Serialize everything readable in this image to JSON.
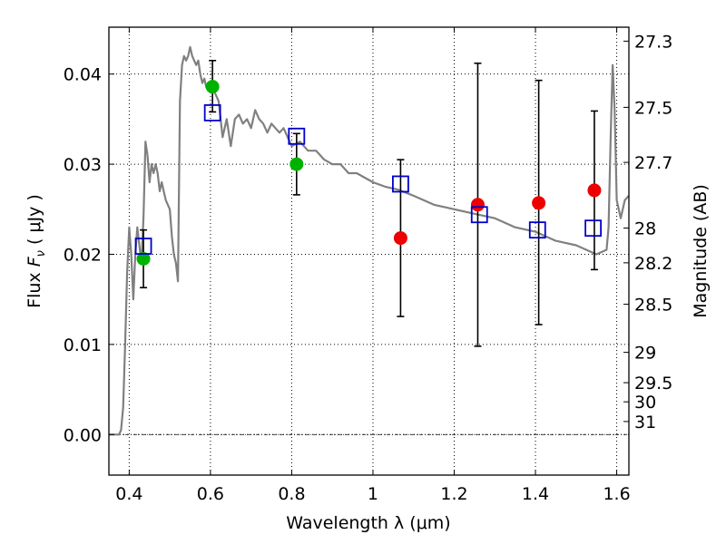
{
  "chart_data": {
    "type": "scatter",
    "xlabel": "Wavelength  λ (μm)",
    "ylabel": "Flux  Fν  ( μJy )",
    "ylabel_parts": {
      "prefix": "Flux  ",
      "symbol": "F",
      "subscript": "ν",
      "suffix": "  ( μJy )"
    },
    "y2label": "Magnitude (AB)",
    "xlim": [
      0.35,
      1.63
    ],
    "ylim": [
      -0.0045,
      0.0452
    ],
    "grid": true,
    "zero_line": true,
    "x_ticks": [
      {
        "value": 0.4,
        "label": "0.4"
      },
      {
        "value": 0.6,
        "label": "0.6"
      },
      {
        "value": 0.8,
        "label": "0.8"
      },
      {
        "value": 1.0,
        "label": "1"
      },
      {
        "value": 1.2,
        "label": "1.2"
      },
      {
        "value": 1.4,
        "label": "1.4"
      },
      {
        "value": 1.6,
        "label": "1.6"
      }
    ],
    "y_ticks": [
      {
        "value": 0.0,
        "label": "0.00"
      },
      {
        "value": 0.01,
        "label": "0.01"
      },
      {
        "value": 0.02,
        "label": "0.02"
      },
      {
        "value": 0.03,
        "label": "0.03"
      },
      {
        "value": 0.04,
        "label": "0.04"
      }
    ],
    "magnitude_ticks": [
      {
        "value": 27.3,
        "label": "27.3"
      },
      {
        "value": 27.5,
        "label": "27.5"
      },
      {
        "value": 27.7,
        "label": "27.7"
      },
      {
        "value": 28.0,
        "label": "28"
      },
      {
        "value": 28.2,
        "label": "28.2"
      },
      {
        "value": 28.5,
        "label": "28.5"
      },
      {
        "value": 29.0,
        "label": "29"
      },
      {
        "value": 29.5,
        "label": "29.5"
      },
      {
        "value": 30.0,
        "label": "30"
      },
      {
        "value": 31.0,
        "label": "31"
      }
    ],
    "series": [
      {
        "name": "model SED",
        "kind": "line",
        "color": "#808080",
        "x": [
          0.35,
          0.375,
          0.38,
          0.385,
          0.39,
          0.395,
          0.4,
          0.405,
          0.41,
          0.415,
          0.42,
          0.425,
          0.43,
          0.435,
          0.44,
          0.445,
          0.45,
          0.455,
          0.46,
          0.465,
          0.47,
          0.475,
          0.48,
          0.485,
          0.49,
          0.495,
          0.5,
          0.505,
          0.51,
          0.515,
          0.52,
          0.525,
          0.53,
          0.535,
          0.54,
          0.545,
          0.55,
          0.555,
          0.56,
          0.565,
          0.57,
          0.575,
          0.58,
          0.585,
          0.59,
          0.595,
          0.6,
          0.61,
          0.62,
          0.63,
          0.64,
          0.65,
          0.66,
          0.67,
          0.68,
          0.69,
          0.7,
          0.71,
          0.72,
          0.73,
          0.74,
          0.75,
          0.76,
          0.77,
          0.78,
          0.79,
          0.8,
          0.82,
          0.84,
          0.86,
          0.88,
          0.9,
          0.92,
          0.94,
          0.96,
          0.98,
          1.0,
          1.03,
          1.06,
          1.1,
          1.15,
          1.2,
          1.25,
          1.3,
          1.35,
          1.4,
          1.45,
          1.5,
          1.55,
          1.575,
          1.58,
          1.585,
          1.59,
          1.595,
          1.6,
          1.61,
          1.62,
          1.63
        ],
        "y": [
          0.0,
          0.0,
          0.0005,
          0.003,
          0.01,
          0.018,
          0.023,
          0.02,
          0.015,
          0.02,
          0.023,
          0.021,
          0.019,
          0.024,
          0.0325,
          0.031,
          0.028,
          0.03,
          0.029,
          0.03,
          0.029,
          0.027,
          0.028,
          0.027,
          0.026,
          0.0255,
          0.025,
          0.022,
          0.02,
          0.019,
          0.017,
          0.037,
          0.041,
          0.042,
          0.0415,
          0.042,
          0.043,
          0.042,
          0.0415,
          0.041,
          0.0415,
          0.04,
          0.039,
          0.0395,
          0.0385,
          0.039,
          0.0385,
          0.038,
          0.037,
          0.033,
          0.035,
          0.032,
          0.035,
          0.0355,
          0.0345,
          0.035,
          0.034,
          0.036,
          0.035,
          0.0345,
          0.0335,
          0.0345,
          0.034,
          0.0335,
          0.034,
          0.033,
          0.032,
          0.0325,
          0.0315,
          0.0315,
          0.0305,
          0.03,
          0.03,
          0.029,
          0.029,
          0.0285,
          0.028,
          0.0275,
          0.0272,
          0.0265,
          0.0255,
          0.025,
          0.0245,
          0.024,
          0.023,
          0.0225,
          0.0215,
          0.021,
          0.02,
          0.0205,
          0.023,
          0.033,
          0.041,
          0.036,
          0.026,
          0.024,
          0.026,
          0.0265
        ]
      },
      {
        "name": "measured (green)",
        "kind": "points",
        "marker": "circle",
        "color": "#00b200",
        "points": [
          {
            "x": 0.435,
            "y": 0.0195,
            "yerr_lo": 0.0032,
            "yerr_hi": 0.0032
          },
          {
            "x": 0.605,
            "y": 0.0386,
            "yerr_lo": 0.0028,
            "yerr_hi": 0.0029
          },
          {
            "x": 0.812,
            "y": 0.03,
            "yerr_lo": 0.0034,
            "yerr_hi": 0.0034
          }
        ]
      },
      {
        "name": "measured (red)",
        "kind": "points",
        "marker": "circle",
        "color": "#ee0000",
        "points": [
          {
            "x": 1.068,
            "y": 0.0218,
            "yerr_lo": 0.0087,
            "yerr_hi": 0.0087
          },
          {
            "x": 1.258,
            "y": 0.0255,
            "yerr_lo": 0.0157,
            "yerr_hi": 0.0157
          },
          {
            "x": 1.408,
            "y": 0.0257,
            "yerr_lo": 0.0135,
            "yerr_hi": 0.0136
          },
          {
            "x": 1.545,
            "y": 0.0271,
            "yerr_lo": 0.0088,
            "yerr_hi": 0.0088
          }
        ]
      },
      {
        "name": "model photometry",
        "kind": "points",
        "marker": "open-square",
        "color": "#0000cc",
        "points": [
          {
            "x": 0.435,
            "y": 0.0209
          },
          {
            "x": 0.605,
            "y": 0.0357
          },
          {
            "x": 0.812,
            "y": 0.0331
          },
          {
            "x": 1.068,
            "y": 0.0278
          },
          {
            "x": 1.262,
            "y": 0.0244
          },
          {
            "x": 1.405,
            "y": 0.0227
          },
          {
            "x": 1.542,
            "y": 0.0229
          }
        ]
      }
    ]
  }
}
